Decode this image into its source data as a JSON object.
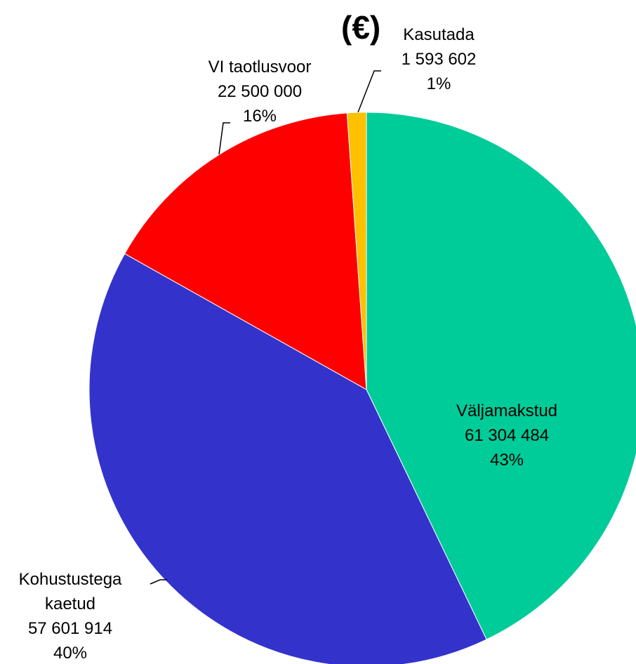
{
  "chart_data": {
    "type": "pie",
    "title": "(€)",
    "categories": [
      "Väljamakstud",
      "Kohustustega kaetud",
      "VI taotlusvoor",
      "Kasutada"
    ],
    "values": [
      61304484,
      57601914,
      22500000,
      1593602
    ],
    "value_labels": [
      "61 304 484",
      "57 601 914",
      "22 500 000",
      "1 593 602"
    ],
    "percent_labels": [
      "43%",
      "40%",
      "16%",
      "1%"
    ],
    "colors": [
      "#00cc99",
      "#3333cc",
      "#ff0000",
      "#ffc000"
    ]
  }
}
